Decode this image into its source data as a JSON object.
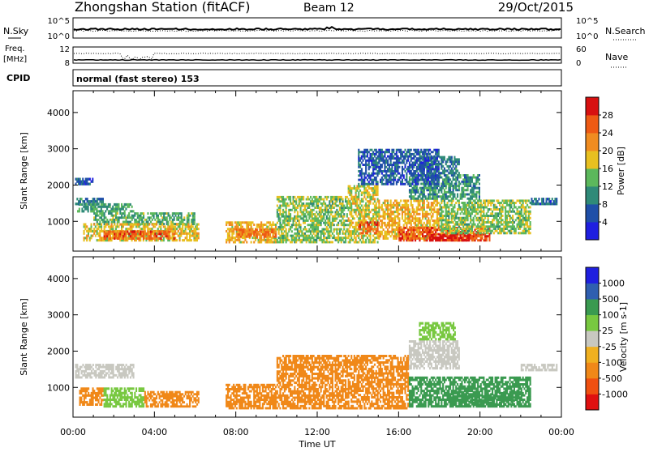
{
  "header": {
    "station": "Zhongshan Station (fitACF)",
    "beam": "Beam 12",
    "date": "29/Oct/2015"
  },
  "top_panels": {
    "nsky_label": "N.Sky",
    "nsky_ticks": [
      "10^5",
      "10^0"
    ],
    "nsearch_label": "N.Search",
    "nsearch_ticks": [
      "10^5",
      "10^0"
    ],
    "freq_label_line1": "Freq.",
    "freq_label_line2": "[MHz]",
    "freq_ticks": [
      "12",
      "8"
    ],
    "nave_label": "Nave",
    "nave_ticks": [
      "60",
      "0"
    ],
    "cpid_label": "CPID",
    "cpid_value": "normal (fast stereo) 153"
  },
  "colors": {
    "power": [
      "#1f1fe0",
      "#1f4fa8",
      "#2f8a78",
      "#5cb85c",
      "#e8c020",
      "#f08c20",
      "#ee5a14",
      "#d81010"
    ],
    "velocity": [
      "#e01010",
      "#f05010",
      "#f08818",
      "#f0b020",
      "#c8c8c0",
      "#78c840",
      "#3a9a50",
      "#2f5fb0",
      "#1f1fe0"
    ]
  },
  "chart_data": [
    {
      "type": "heatmap",
      "name": "power",
      "xlabel": "",
      "ylabel": "Slant Range [km]",
      "x_ticks": [
        "00:00",
        "04:00",
        "08:00",
        "12:00",
        "16:00",
        "20:00",
        "00:00"
      ],
      "y_ticks": [
        "1000",
        "2000",
        "3000",
        "4000"
      ],
      "xlim_hours": [
        0,
        24
      ],
      "ylim_km": [
        180,
        4600
      ],
      "colorbar_label": "Power [dB]",
      "colorbar_ticks": [
        "4",
        "8",
        "12",
        "16",
        "20",
        "24",
        "28"
      ],
      "colorbar_range": [
        0,
        30
      ],
      "bands": [
        {
          "t0": 0.1,
          "t1": 1.5,
          "r0": 1450,
          "r1": 1650,
          "v": 8
        },
        {
          "t0": 0.2,
          "t1": 3.0,
          "r0": 1250,
          "r1": 1500,
          "v": 11
        },
        {
          "t0": 1.0,
          "t1": 6.0,
          "r0": 900,
          "r1": 1250,
          "v": 12
        },
        {
          "t0": 0.5,
          "t1": 6.2,
          "r0": 450,
          "r1": 950,
          "v": 17
        },
        {
          "t0": 1.5,
          "t1": 5.0,
          "r0": 500,
          "r1": 750,
          "v": 24
        },
        {
          "t0": 0.1,
          "t1": 1.0,
          "r0": 2000,
          "r1": 2200,
          "v": 6
        },
        {
          "t0": 7.5,
          "t1": 10.0,
          "r0": 400,
          "r1": 1000,
          "v": 18
        },
        {
          "t0": 8.0,
          "t1": 10.0,
          "r0": 550,
          "r1": 800,
          "v": 22
        },
        {
          "t0": 10.0,
          "t1": 13.5,
          "r0": 400,
          "r1": 1700,
          "v": 14
        },
        {
          "t0": 13.5,
          "t1": 15.0,
          "r0": 400,
          "r1": 2000,
          "v": 16
        },
        {
          "t0": 14.0,
          "t1": 15.0,
          "r0": 650,
          "r1": 1000,
          "v": 24
        },
        {
          "t0": 15.0,
          "t1": 18.0,
          "r0": 500,
          "r1": 1600,
          "v": 18
        },
        {
          "t0": 16.0,
          "t1": 20.5,
          "r0": 450,
          "r1": 850,
          "v": 25
        },
        {
          "t0": 17.5,
          "t1": 19.5,
          "r0": 450,
          "r1": 650,
          "v": 28
        },
        {
          "t0": 18.0,
          "t1": 22.5,
          "r0": 650,
          "r1": 1600,
          "v": 14
        },
        {
          "t0": 16.5,
          "t1": 20.0,
          "r0": 1600,
          "r1": 2300,
          "v": 10
        },
        {
          "t0": 17.0,
          "t1": 19.0,
          "r0": 2300,
          "r1": 2800,
          "v": 8
        },
        {
          "t0": 14.0,
          "t1": 18.0,
          "r0": 2000,
          "r1": 3000,
          "v": 6
        },
        {
          "t0": 22.5,
          "t1": 23.8,
          "r0": 1450,
          "r1": 1650,
          "v": 6
        }
      ]
    },
    {
      "type": "heatmap",
      "name": "velocity",
      "xlabel": "Time UT",
      "ylabel": "Slant Range [km]",
      "x_ticks": [
        "00:00",
        "04:00",
        "08:00",
        "12:00",
        "16:00",
        "20:00",
        "00:00"
      ],
      "y_ticks": [
        "1000",
        "2000",
        "3000",
        "4000"
      ],
      "xlim_hours": [
        0,
        24
      ],
      "ylim_km": [
        180,
        4600
      ],
      "colorbar_label": "Velocity [m s-1]",
      "colorbar_ticks": [
        "1000",
        "500",
        "100",
        "25",
        "-25",
        "-100",
        "-500",
        "-1000"
      ],
      "bands": [
        {
          "t0": 0.1,
          "t1": 3.0,
          "r0": 1250,
          "r1": 1650,
          "v": 0
        },
        {
          "t0": 0.3,
          "t1": 1.5,
          "r0": 500,
          "r1": 1000,
          "v": -150
        },
        {
          "t0": 1.5,
          "t1": 3.5,
          "r0": 450,
          "r1": 1000,
          "v": 80
        },
        {
          "t0": 3.5,
          "t1": 6.2,
          "r0": 450,
          "r1": 900,
          "v": -300
        },
        {
          "t0": 7.5,
          "t1": 13.5,
          "r0": 400,
          "r1": 1100,
          "v": -350
        },
        {
          "t0": 10.0,
          "t1": 13.5,
          "r0": 1100,
          "r1": 1900,
          "v": -400
        },
        {
          "t0": 13.5,
          "t1": 16.5,
          "r0": 400,
          "r1": 1900,
          "v": -300
        },
        {
          "t0": 16.5,
          "t1": 22.5,
          "r0": 450,
          "r1": 1300,
          "v": 150
        },
        {
          "t0": 18.5,
          "t1": 22.0,
          "r0": 500,
          "r1": 900,
          "v": 300
        },
        {
          "t0": 16.5,
          "t1": 19.0,
          "r0": 1500,
          "r1": 2300,
          "v": 0
        },
        {
          "t0": 17.0,
          "t1": 18.8,
          "r0": 2300,
          "r1": 2800,
          "v": 80
        },
        {
          "t0": 22.0,
          "t1": 23.8,
          "r0": 1450,
          "r1": 1650,
          "v": 0
        }
      ]
    }
  ]
}
